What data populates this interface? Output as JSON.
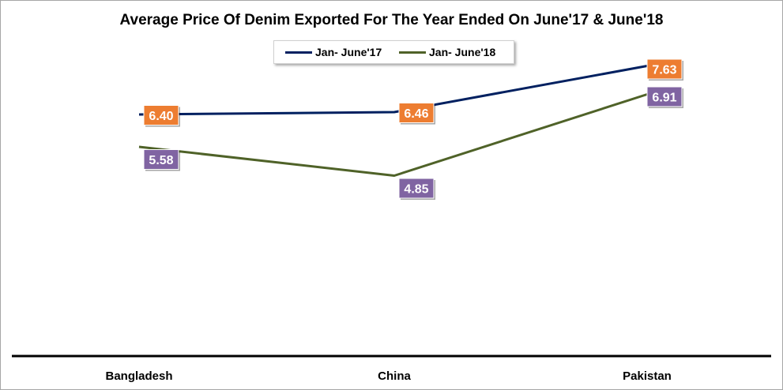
{
  "chart_data": {
    "type": "line",
    "title": "Average Price Of Denim Exported For The Year Ended On June'17 & June'18",
    "categories": [
      "Bangladesh",
      "China",
      "Pakistan"
    ],
    "series": [
      {
        "name": "Jan- June'17",
        "values": [
          6.4,
          6.46,
          7.63
        ],
        "labels": [
          "6.40",
          "6.46",
          "7.63"
        ],
        "color": "#002060",
        "label_color": "#ed7d31"
      },
      {
        "name": "Jan- June'18",
        "values": [
          5.58,
          4.85,
          6.91
        ],
        "labels": [
          "5.58",
          "4.85",
          "6.91"
        ],
        "color": "#4f6228",
        "label_color": "#8064a2"
      }
    ],
    "ylim": [
      0,
      9
    ],
    "xlabel": "",
    "ylabel": "",
    "grid": false,
    "legend_position": "top"
  }
}
